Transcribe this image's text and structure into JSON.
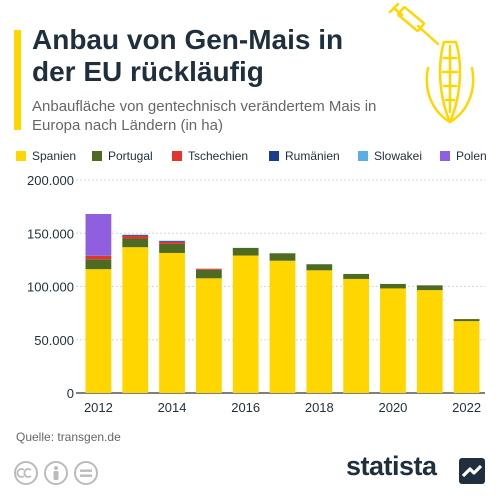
{
  "header": {
    "title": "Anbau von Gen-Mais in der EU rückläufig",
    "subtitle": "Anbaufläche von gentechnisch verändertem Mais in Europa nach Ländern (in ha)"
  },
  "footer": {
    "source": "Quelle: transgen.de",
    "brand": "statista"
  },
  "icons": [
    "syringe-corn-icon",
    "cc-icon",
    "person-icon",
    "equals-icon",
    "statista-logo-icon"
  ],
  "colors": {
    "accent": "#FFD600",
    "Spanien": "#FFD600",
    "Portugal": "#4F6A22",
    "Tschechien": "#E3342F",
    "Rumänien": "#1A3E8C",
    "Slowakei": "#5AAEE6",
    "Polen": "#8F5FE0"
  },
  "chart_data": {
    "type": "bar",
    "stacked": true,
    "categories": [
      "2012",
      "2013",
      "2014",
      "2015",
      "2016",
      "2017",
      "2018",
      "2019",
      "2020",
      "2021",
      "2022"
    ],
    "x_tick_labels": [
      "2012",
      "2014",
      "2016",
      "2018",
      "2020",
      "2022"
    ],
    "y_tick_labels": [
      "0",
      "50.000",
      "100.000",
      "150.000",
      "200.000"
    ],
    "ylim": [
      0,
      200000
    ],
    "legend_position": "top",
    "grid": true,
    "series": [
      {
        "name": "Spanien",
        "color": "#FFD600",
        "values": [
          116300,
          136900,
          131500,
          107700,
          129100,
          124200,
          115200,
          107100,
          98200,
          96600,
          67500
        ]
      },
      {
        "name": "Portugal",
        "color": "#4F6A22",
        "values": [
          9300,
          8200,
          8500,
          8000,
          7100,
          7000,
          5700,
          4700,
          4200,
          4500,
          1900
        ]
      },
      {
        "name": "Tschechien",
        "color": "#E3342F",
        "values": [
          3100,
          2600,
          1800,
          1000,
          0,
          0,
          0,
          0,
          0,
          0,
          0
        ]
      },
      {
        "name": "Rumänien",
        "color": "#1A3E8C",
        "values": [
          200,
          800,
          800,
          0,
          0,
          0,
          0,
          0,
          0,
          0,
          0
        ]
      },
      {
        "name": "Slowakei",
        "color": "#5AAEE6",
        "values": [
          200,
          100,
          400,
          100,
          100,
          0,
          0,
          0,
          0,
          0,
          0
        ]
      },
      {
        "name": "Polen",
        "color": "#8F5FE0",
        "values": [
          39000,
          0,
          0,
          0,
          0,
          0,
          0,
          0,
          0,
          0,
          0
        ]
      }
    ]
  }
}
